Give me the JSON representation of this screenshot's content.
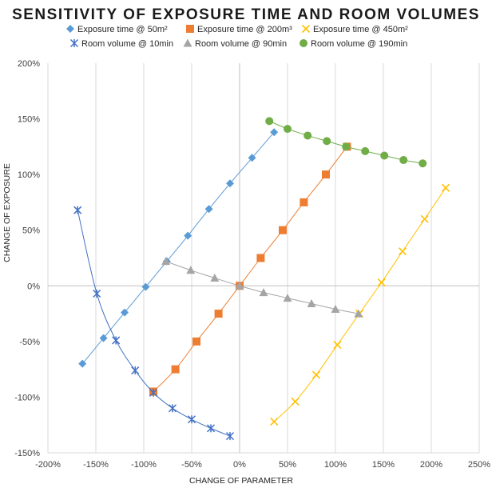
{
  "chart_data": {
    "type": "scatter",
    "title": "SENSITIVITY OF EXPOSURE TIME AND ROOM VOLUMES",
    "xlabel": "CHANGE OF PARAMETER",
    "ylabel": "CHANGE OF EXPOSURE",
    "xlim": [
      -200,
      250
    ],
    "ylim": [
      -150,
      200
    ],
    "x_ticks": [
      "-200%",
      "-150%",
      "-100%",
      "-50%",
      "0%",
      "50%",
      "100%",
      "150%",
      "200%",
      "250%"
    ],
    "y_ticks": [
      "-150%",
      "-100%",
      "-50%",
      "0%",
      "50%",
      "100%",
      "150%",
      "200%"
    ],
    "x_tick_values": [
      -200,
      -150,
      -100,
      -50,
      0,
      50,
      100,
      150,
      200,
      250
    ],
    "y_tick_values": [
      -150,
      -100,
      -50,
      0,
      50,
      100,
      150,
      200
    ],
    "grid": "vertical gridlines",
    "legend_position": "top",
    "series": [
      {
        "name": "Exposure time @ 50m²",
        "marker": "diamond",
        "color": "#5B9BD5",
        "points": [
          [
            -164,
            -70
          ],
          [
            -142,
            -47
          ],
          [
            -120,
            -24
          ],
          [
            -98,
            -1
          ],
          [
            -76,
            22
          ],
          [
            -54,
            45
          ],
          [
            -32,
            69
          ],
          [
            -10,
            92
          ],
          [
            13,
            115
          ],
          [
            36,
            138
          ]
        ]
      },
      {
        "name": "Exposure time @ 200m³",
        "marker": "square",
        "color": "#ED7D31",
        "points": [
          [
            -90,
            -95
          ],
          [
            -67,
            -75
          ],
          [
            -45,
            -50
          ],
          [
            -22,
            -25
          ],
          [
            0,
            0
          ],
          [
            22,
            25
          ],
          [
            45,
            50
          ],
          [
            67,
            75
          ],
          [
            90,
            100
          ],
          [
            112,
            125
          ]
        ]
      },
      {
        "name": "Exposure time @ 450m²",
        "marker": "x",
        "color": "#FFC000",
        "points": [
          [
            36,
            -122
          ],
          [
            58,
            -104
          ],
          [
            80,
            -80
          ],
          [
            102,
            -53
          ],
          [
            125,
            -25
          ],
          [
            148,
            3
          ],
          [
            170,
            31
          ],
          [
            193,
            60
          ],
          [
            215,
            88
          ]
        ]
      },
      {
        "name": "Room volume @ 10min",
        "marker": "asterisk",
        "color": "#4472C4",
        "points": [
          [
            -169,
            68
          ],
          [
            -149,
            -7
          ],
          [
            -129,
            -49
          ],
          [
            -109,
            -76
          ],
          [
            -90,
            -96
          ],
          [
            -70,
            -110
          ],
          [
            -50,
            -120
          ],
          [
            -30,
            -128
          ],
          [
            -10,
            -135
          ]
        ]
      },
      {
        "name": "Room volume @ 90min",
        "marker": "triangle",
        "color": "#A5A5A5",
        "points": [
          [
            -77,
            22
          ],
          [
            -51,
            14
          ],
          [
            -26,
            7
          ],
          [
            0,
            0
          ],
          [
            25,
            -6
          ],
          [
            50,
            -11
          ],
          [
            75,
            -16
          ],
          [
            100,
            -21
          ],
          [
            124,
            -25
          ]
        ]
      },
      {
        "name": "Room volume @ 190min",
        "marker": "circle",
        "color": "#70AD47",
        "points": [
          [
            31,
            148
          ],
          [
            50,
            141
          ],
          [
            71,
            135
          ],
          [
            91,
            130
          ],
          [
            111,
            125
          ],
          [
            131,
            121
          ],
          [
            151,
            117
          ],
          [
            171,
            113
          ],
          [
            191,
            110
          ]
        ]
      }
    ]
  }
}
